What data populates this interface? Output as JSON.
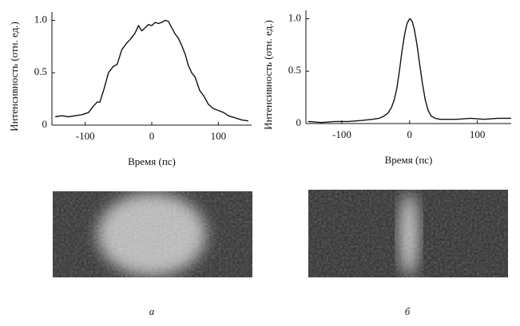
{
  "chart_data": [
    {
      "type": "line",
      "xlabel": "Время (пс)",
      "ylabel": "Интенсивность (отн. ед.)",
      "xlim": [
        -150,
        150
      ],
      "ylim": [
        0,
        1.08
      ],
      "xticks": [
        -100,
        0,
        100
      ],
      "yticks": [
        0,
        0.5,
        {
          "value": 1,
          "label": "1.0"
        }
      ],
      "series": [
        {
          "color": "#111111",
          "x": [
            -145,
            -135,
            -125,
            -115,
            -105,
            -95,
            -88,
            -82,
            -78,
            -72,
            -65,
            -58,
            -52,
            -45,
            -38,
            -32,
            -25,
            -20,
            -15,
            -10,
            -5,
            0,
            5,
            10,
            15,
            20,
            25,
            30,
            35,
            40,
            45,
            50,
            55,
            60,
            65,
            72,
            78,
            85,
            92,
            100,
            108,
            115,
            125,
            135,
            145
          ],
          "values": [
            0.08,
            0.09,
            0.08,
            0.09,
            0.1,
            0.12,
            0.18,
            0.22,
            0.22,
            0.34,
            0.5,
            0.56,
            0.58,
            0.72,
            0.78,
            0.82,
            0.88,
            0.95,
            0.9,
            0.93,
            0.96,
            0.95,
            0.98,
            0.97,
            0.98,
            1.0,
            0.99,
            0.93,
            0.87,
            0.83,
            0.76,
            0.68,
            0.57,
            0.5,
            0.46,
            0.33,
            0.28,
            0.2,
            0.16,
            0.14,
            0.12,
            0.09,
            0.07,
            0.05,
            0.04
          ]
        }
      ]
    },
    {
      "type": "line",
      "xlabel": "Время (пс)",
      "ylabel": "Интенсивность (отн. ед.)",
      "xlim": [
        -153,
        150
      ],
      "ylim": [
        0,
        1.08
      ],
      "xticks": [
        -100,
        0,
        100
      ],
      "yticks": [
        0,
        0.5,
        {
          "value": 1,
          "label": "1.0"
        }
      ],
      "series": [
        {
          "color": "#111111",
          "x": [
            -150,
            -130,
            -110,
            -90,
            -70,
            -55,
            -45,
            -38,
            -32,
            -27,
            -23,
            -19,
            -15,
            -11,
            -7,
            -4,
            -1,
            1,
            4,
            7,
            11,
            15,
            19,
            23,
            27,
            32,
            38,
            45,
            55,
            70,
            90,
            110,
            130,
            150
          ],
          "values": [
            0.02,
            0.01,
            0.02,
            0.02,
            0.03,
            0.04,
            0.05,
            0.07,
            0.1,
            0.15,
            0.22,
            0.33,
            0.5,
            0.7,
            0.86,
            0.95,
            0.99,
            1.0,
            0.97,
            0.9,
            0.75,
            0.56,
            0.38,
            0.23,
            0.13,
            0.07,
            0.05,
            0.04,
            0.04,
            0.04,
            0.05,
            0.04,
            0.05,
            0.05
          ]
        }
      ]
    }
  ],
  "panels": [
    "а",
    "б"
  ]
}
